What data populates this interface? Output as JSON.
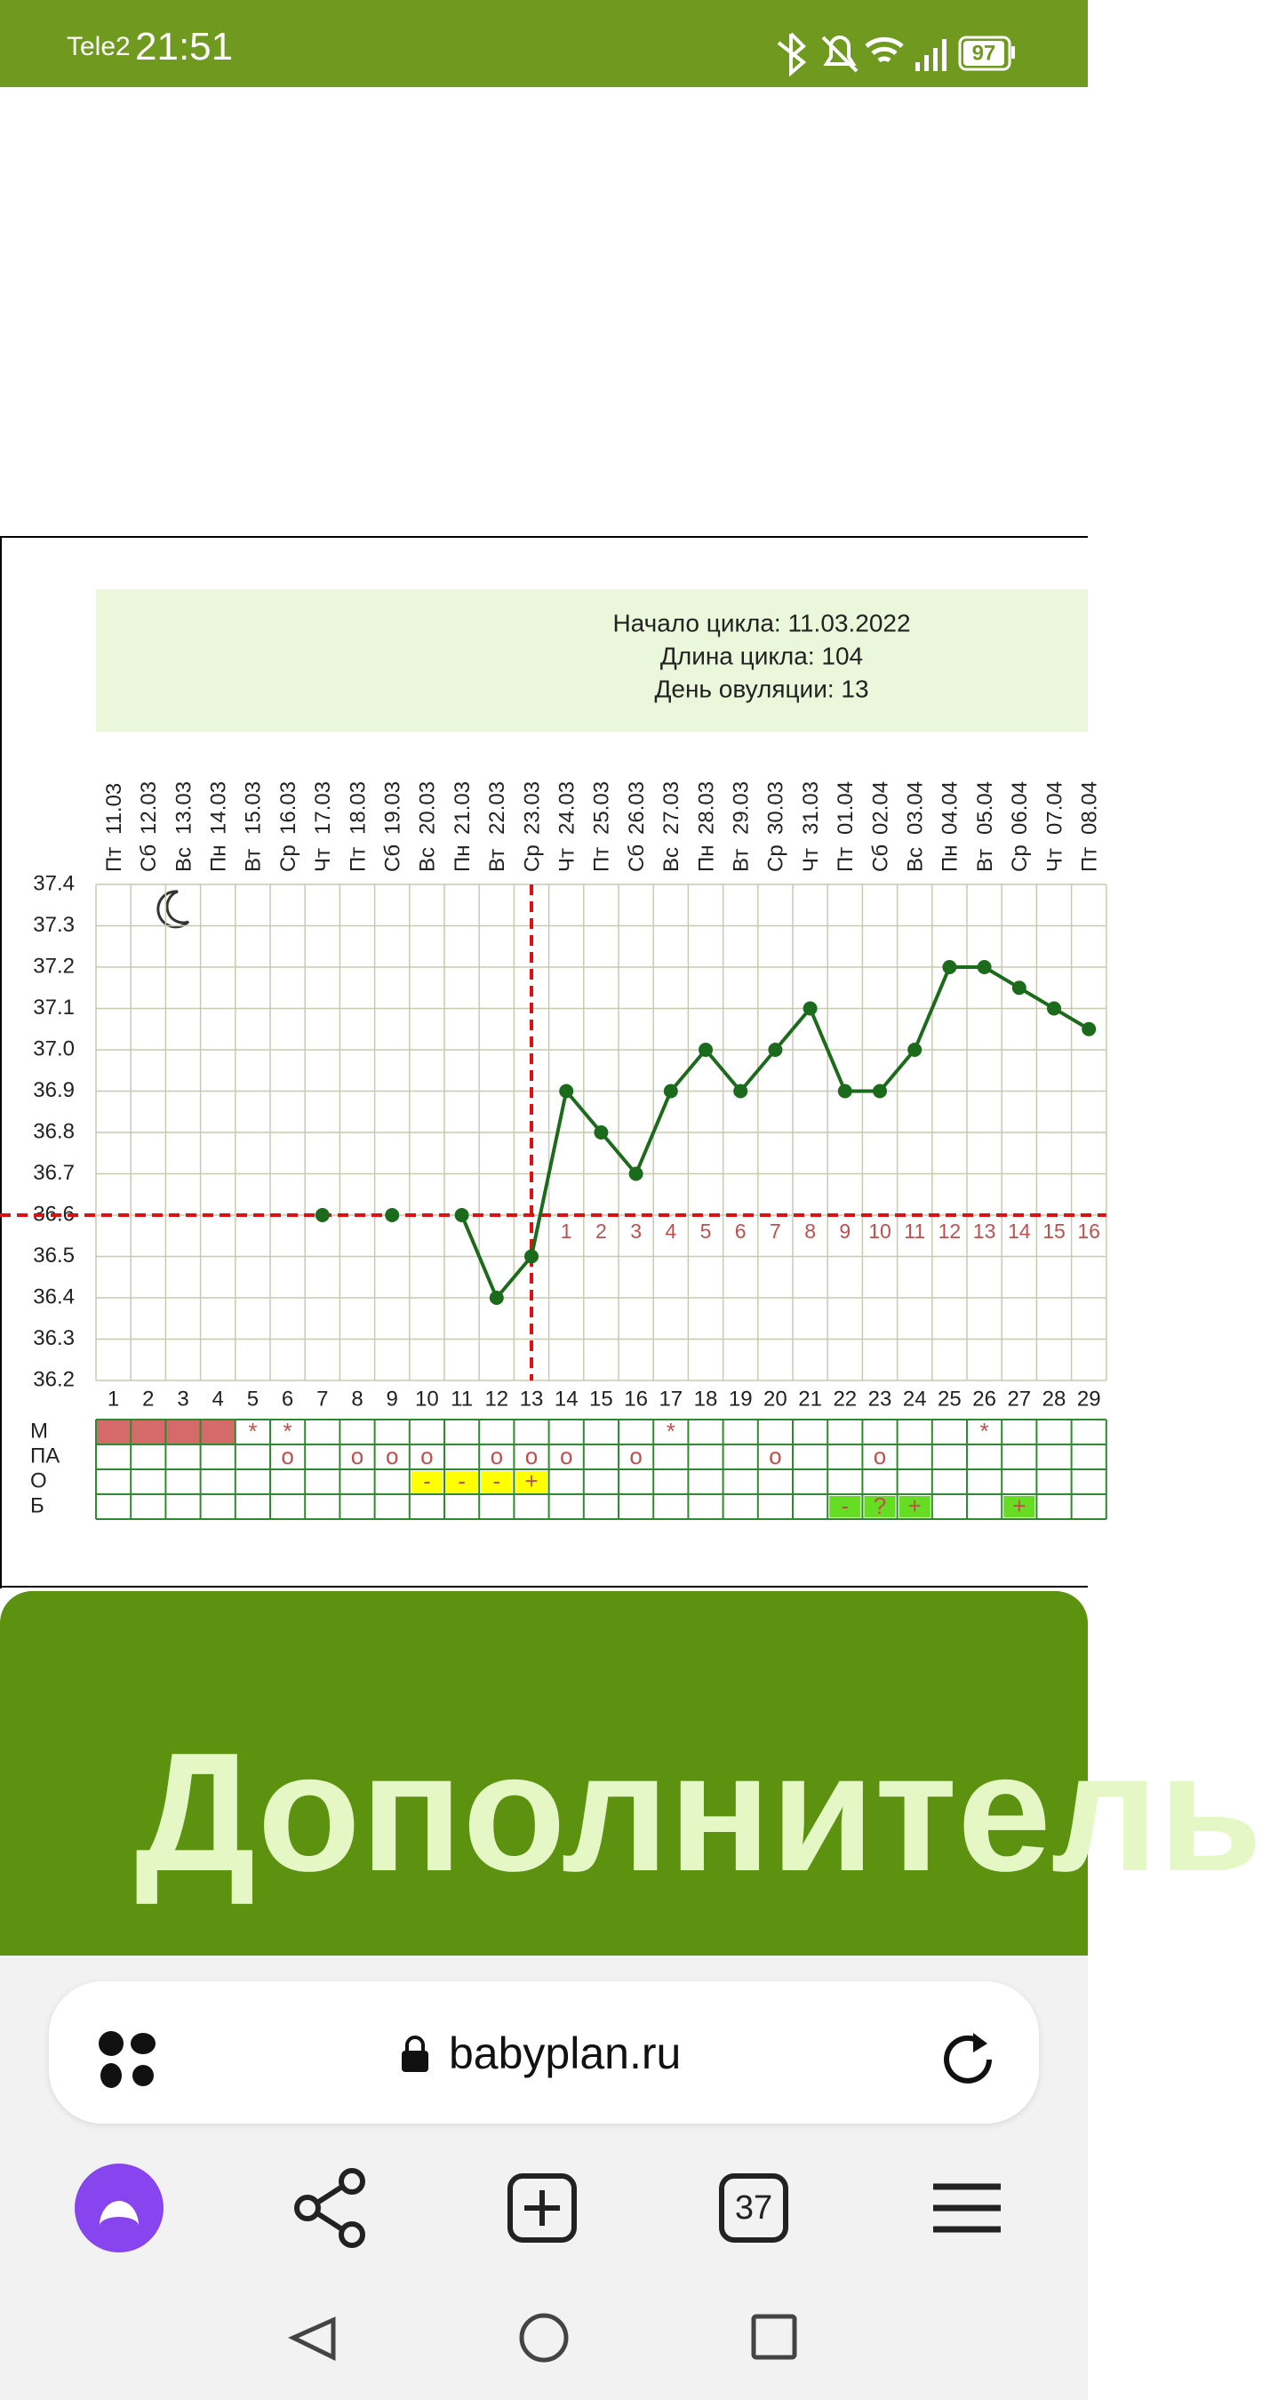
{
  "status_bar": {
    "carrier": "Tele2",
    "time": "21:51",
    "battery": "97"
  },
  "chart_data": {
    "type": "line",
    "info": [
      "Начало цикла: 11.03.2022",
      "Длина цикла: 104",
      "День овуляции: 13"
    ],
    "categories": [
      "1",
      "2",
      "3",
      "4",
      "5",
      "6",
      "7",
      "8",
      "9",
      "10",
      "11",
      "12",
      "13",
      "14",
      "15",
      "16",
      "17",
      "18",
      "19",
      "20",
      "21",
      "22",
      "23",
      "24",
      "25",
      "26",
      "27",
      "28",
      "29"
    ],
    "weekdays": [
      "Пт",
      "Сб",
      "Вс",
      "Пн",
      "Вт",
      "Ср",
      "Чт",
      "Пт",
      "Сб",
      "Вс",
      "Пн",
      "Вт",
      "Ср",
      "Чт",
      "Пт",
      "Сб",
      "Вс",
      "Пн",
      "Вт",
      "Ср",
      "Чт",
      "Пт",
      "Сб",
      "Вс",
      "Пн",
      "Вт",
      "Ср",
      "Чт",
      "Пт"
    ],
    "dates": [
      "11.03",
      "12.03",
      "13.03",
      "14.03",
      "15.03",
      "16.03",
      "17.03",
      "18.03",
      "19.03",
      "20.03",
      "21.03",
      "22.03",
      "23.03",
      "24.03",
      "25.03",
      "26.03",
      "27.03",
      "28.03",
      "29.03",
      "30.03",
      "31.03",
      "01.04",
      "02.04",
      "03.04",
      "04.04",
      "05.04",
      "06.04",
      "07.04",
      "08.04"
    ],
    "phase_days": [
      null,
      null,
      null,
      null,
      null,
      null,
      null,
      null,
      null,
      null,
      null,
      null,
      null,
      "1",
      "2",
      "3",
      "4",
      "5",
      "6",
      "7",
      "8",
      "9",
      "10",
      "11",
      "12",
      "13",
      "14",
      "15",
      "16"
    ],
    "series": [
      {
        "color": "#1c6b1c",
        "values": [
          null,
          null,
          null,
          null,
          null,
          null,
          36.6,
          null,
          36.6,
          null,
          36.6,
          36.4,
          36.5,
          36.9,
          36.8,
          36.7,
          36.9,
          37.0,
          36.9,
          37.0,
          37.1,
          36.9,
          36.9,
          37.0,
          37.2,
          37.2,
          37.15,
          37.1,
          37.05
        ]
      }
    ],
    "ylim": [
      36.2,
      37.4
    ],
    "yticks": [
      36.2,
      36.3,
      36.4,
      36.5,
      36.6,
      36.7,
      36.8,
      36.9,
      {
        "value": 37,
        "label": "37.0"
      },
      37.1,
      37.2,
      37.3,
      37.4
    ],
    "coverline": 36.6,
    "ovulation_day": 13,
    "line_color": "#dd1111",
    "grid": true,
    "rows": [
      {
        "label": "М",
        "filled": [
          1,
          2,
          3,
          4
        ],
        "cell_color": "#d46a6a",
        "cells": [
          null,
          null,
          null,
          null,
          "*",
          "*",
          null,
          null,
          null,
          null,
          null,
          null,
          null,
          null,
          null,
          null,
          "*",
          null,
          null,
          null,
          null,
          null,
          null,
          null,
          null,
          "*",
          null,
          null,
          null
        ]
      },
      {
        "label": "ПА",
        "cells": [
          null,
          null,
          null,
          null,
          null,
          "o",
          null,
          "o",
          "o",
          "o",
          null,
          "o",
          "o",
          "o",
          null,
          "o",
          null,
          null,
          null,
          "o",
          null,
          null,
          "o",
          null,
          null,
          null,
          null,
          null,
          null
        ]
      },
      {
        "label": "О",
        "cell_color": "#ffff00",
        "cells": [
          null,
          null,
          null,
          null,
          null,
          null,
          null,
          null,
          null,
          "-",
          "-",
          "-",
          "+",
          null,
          null,
          null,
          null,
          null,
          null,
          null,
          null,
          null,
          null,
          null,
          null,
          null,
          null,
          null,
          null
        ]
      },
      {
        "label": "Б",
        "cell_color": "#66dd22",
        "cells": [
          null,
          null,
          null,
          null,
          null,
          null,
          null,
          null,
          null,
          null,
          null,
          null,
          null,
          null,
          null,
          null,
          null,
          null,
          null,
          null,
          null,
          "-",
          "?",
          "+",
          null,
          null,
          "+",
          null,
          null
        ]
      }
    ]
  },
  "banner": {
    "title": "Дополнитель"
  },
  "browser": {
    "url": "babyplan.ru",
    "tabs": "37"
  }
}
